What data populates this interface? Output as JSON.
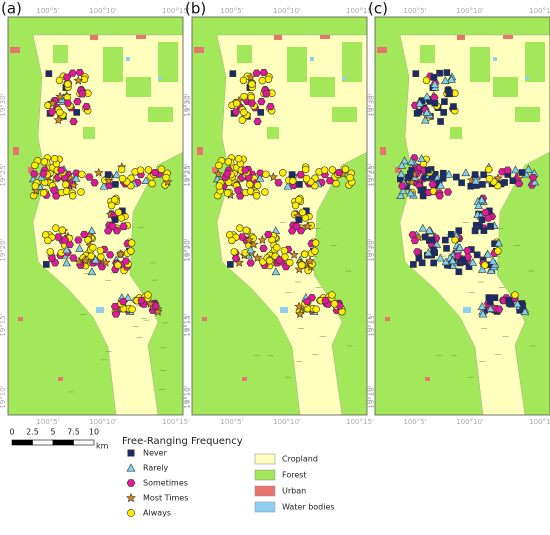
{
  "panels": [
    {
      "label": "(a)"
    },
    {
      "label": "(b)"
    },
    {
      "label": "(c)"
    }
  ],
  "map_axes": {
    "longitude_labels": [
      "100°5'",
      "100°10'",
      "100°15'"
    ],
    "latitude_labels": [
      "19°30'",
      "19°25'",
      "19°20'",
      "19°15'",
      "19°10'"
    ]
  },
  "scale_bar": {
    "labels": [
      "0",
      "2.5",
      "5",
      "7.5",
      "10"
    ],
    "unit": "km"
  },
  "legend": {
    "title": "Free-Ranging Frequency",
    "symbols": [
      "Never",
      "Rarely",
      "Sometimes",
      "Most Times",
      "Always"
    ],
    "land_cover": [
      "Cropland",
      "Forest",
      "Urban",
      "Water bodies"
    ]
  }
}
